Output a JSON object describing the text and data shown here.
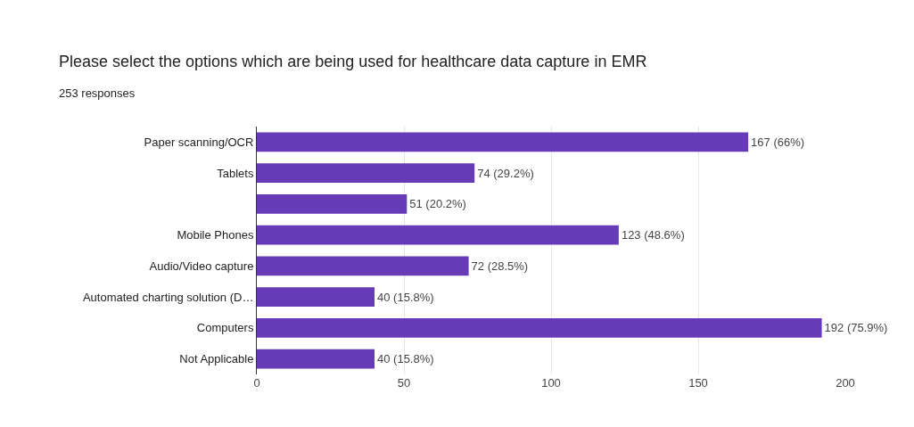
{
  "chart_data": {
    "type": "bar",
    "orientation": "horizontal",
    "title": "Please select the options which are being used for healthcare data capture in EMR",
    "subtitle": "253 responses",
    "categories": [
      "Paper scanning/OCR",
      "Tablets",
      null,
      "Mobile Phones",
      "Audio/Video capture",
      "Automated charting solution (D…",
      "Computers",
      "Not Applicable"
    ],
    "values": [
      167,
      74,
      51,
      123,
      72,
      40,
      192,
      40
    ],
    "value_labels": [
      "167 (66%)",
      "74 (29.2%)",
      "51 (20.2%)",
      "123 (48.6%)",
      "72 (28.5%)",
      "40 (15.8%)",
      "192 (75.9%)",
      "40 (15.8%)"
    ],
    "color": "#673ab7",
    "xlim": [
      0,
      200
    ],
    "xticks": [
      0,
      50,
      100,
      150,
      200
    ],
    "grid": "x",
    "legend": false
  }
}
